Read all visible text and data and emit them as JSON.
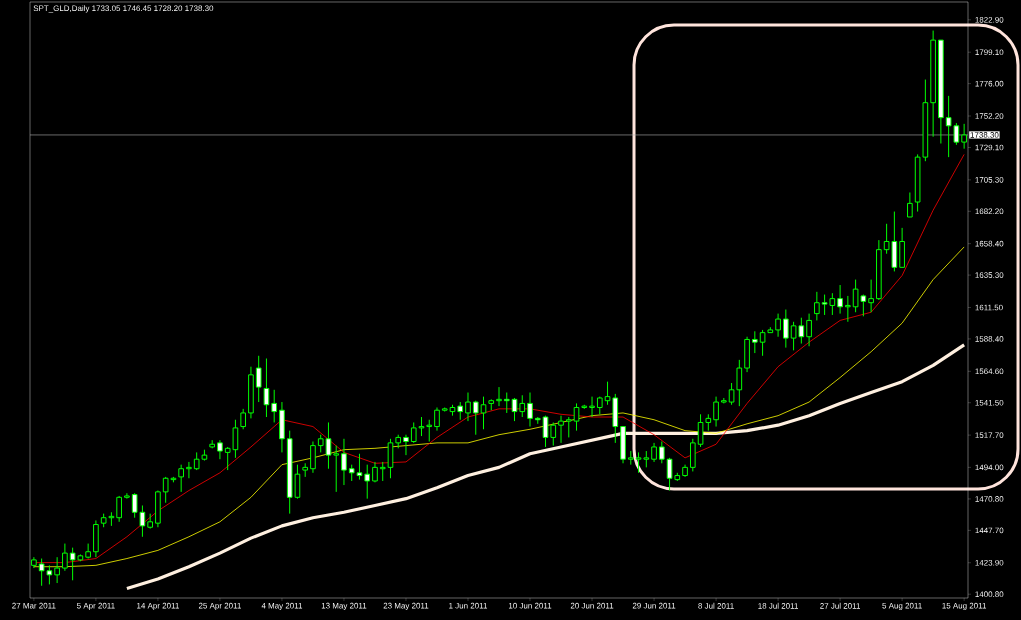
{
  "chart_data": {
    "type": "candlestick",
    "title": "SPT_GLD,Daily 1733.05 1746.45 1728.20 1738.30",
    "color": "#00ff00",
    "categories": [
      "27 Mar 2011",
      null,
      null,
      null,
      null,
      null,
      null,
      null,
      "5 Apr 2011",
      null,
      null,
      null,
      null,
      null,
      null,
      null,
      "14 Apr 2011",
      null,
      null,
      null,
      null,
      null,
      null,
      null,
      "25 Apr 2011",
      null,
      null,
      null,
      null,
      null,
      null,
      null,
      "4 May 2011",
      null,
      null,
      null,
      null,
      null,
      null,
      null,
      "13 May 2011",
      null,
      null,
      null,
      null,
      null,
      null,
      null,
      "23 May 2011",
      null,
      null,
      null,
      null,
      null,
      null,
      null,
      "1 Jun 2011",
      null,
      null,
      null,
      null,
      null,
      null,
      null,
      "10 Jun 2011",
      null,
      null,
      null,
      null,
      null,
      null,
      null,
      "20 Jun 2011",
      null,
      null,
      null,
      null,
      null,
      null,
      null,
      "29 Jun 2011",
      null,
      null,
      null,
      null,
      null,
      null,
      null,
      "8 Jul 2011",
      null,
      null,
      null,
      null,
      null,
      null,
      null,
      "18 Jul 2011",
      null,
      null,
      null,
      null,
      null,
      null,
      null,
      "27 Jul 2011",
      null,
      null,
      null,
      null,
      null,
      null,
      null,
      "5 Aug 2011",
      null,
      null,
      null,
      null,
      null,
      null,
      null,
      "15 Aug 2011"
    ],
    "ohlc": [
      [
        1422,
        1428,
        1420,
        1426
      ],
      [
        1423,
        1427,
        1407,
        1418
      ],
      [
        1418,
        1422,
        1408,
        1415
      ],
      [
        1415,
        1428,
        1409,
        1420
      ],
      [
        1420,
        1438,
        1418,
        1431
      ],
      [
        1431,
        1435,
        1411,
        1426
      ],
      [
        1426,
        1430,
        1425,
        1429
      ],
      [
        1428,
        1438,
        1427,
        1432
      ],
      [
        1432,
        1455,
        1428,
        1452
      ],
      [
        1453,
        1460,
        1450,
        1457
      ],
      [
        1457,
        1461,
        1451,
        1458
      ],
      [
        1457,
        1473,
        1454,
        1472
      ],
      [
        1472,
        1475,
        1471,
        1473
      ],
      [
        1474,
        1475,
        1457,
        1461
      ],
      [
        1461,
        1466,
        1443,
        1451
      ],
      [
        1450,
        1460,
        1449,
        1454
      ],
      [
        1453,
        1477,
        1450,
        1476
      ],
      [
        1476,
        1487,
        1468,
        1486
      ],
      [
        1485,
        1487,
        1483,
        1486
      ],
      [
        1487,
        1496,
        1476,
        1493
      ],
      [
        1493,
        1498,
        1486,
        1494
      ],
      [
        1493,
        1505,
        1492,
        1500
      ],
      [
        1500,
        1507,
        1499,
        1503
      ],
      [
        1509,
        1514,
        1508,
        1511
      ],
      [
        1512,
        1514,
        1500,
        1506
      ],
      [
        1505,
        1509,
        1492,
        1508
      ],
      [
        1507,
        1529,
        1501,
        1523
      ],
      [
        1524,
        1537,
        1522,
        1534
      ],
      [
        1534,
        1568,
        1530,
        1562
      ],
      [
        1567,
        1576,
        1542,
        1553
      ],
      [
        1552,
        1574,
        1531,
        1540
      ],
      [
        1541,
        1551,
        1527,
        1535
      ],
      [
        1536,
        1542,
        1505,
        1515
      ],
      [
        1515,
        1521,
        1460,
        1472
      ],
      [
        1472,
        1496,
        1471,
        1489
      ],
      [
        1492,
        1497,
        1487,
        1494
      ],
      [
        1493,
        1513,
        1490,
        1510
      ],
      [
        1510,
        1518,
        1505,
        1515
      ],
      [
        1515,
        1527,
        1493,
        1503
      ],
      [
        1503,
        1510,
        1476,
        1504
      ],
      [
        1504,
        1515,
        1481,
        1492
      ],
      [
        1493,
        1496,
        1484,
        1490
      ],
      [
        1490,
        1504,
        1485,
        1488
      ],
      [
        1489,
        1496,
        1471,
        1484
      ],
      [
        1484,
        1498,
        1483,
        1494
      ],
      [
        1493,
        1498,
        1484,
        1494
      ],
      [
        1494,
        1515,
        1486,
        1512
      ],
      [
        1512,
        1518,
        1508,
        1516
      ],
      [
        1516,
        1518,
        1503,
        1513
      ],
      [
        1513,
        1527,
        1512,
        1523
      ],
      [
        1523,
        1531,
        1517,
        1524
      ],
      [
        1524,
        1529,
        1513,
        1525
      ],
      [
        1524,
        1538,
        1521,
        1536
      ],
      [
        1536,
        1538,
        1535,
        1537
      ],
      [
        1535,
        1540,
        1532,
        1538
      ],
      [
        1539,
        1542,
        1529,
        1535
      ],
      [
        1534,
        1549,
        1528,
        1542
      ],
      [
        1542,
        1543,
        1518,
        1534
      ],
      [
        1534,
        1546,
        1522,
        1540
      ],
      [
        1541,
        1544,
        1536,
        1543
      ],
      [
        1543,
        1553,
        1539,
        1544
      ],
      [
        1544,
        1549,
        1534,
        1543
      ],
      [
        1544,
        1545,
        1528,
        1535
      ],
      [
        1535,
        1547,
        1531,
        1541
      ],
      [
        1541,
        1549,
        1524,
        1530
      ],
      [
        1530,
        1531,
        1526,
        1529
      ],
      [
        1531,
        1532,
        1509,
        1516
      ],
      [
        1516,
        1527,
        1510,
        1525
      ],
      [
        1525,
        1532,
        1512,
        1528
      ],
      [
        1528,
        1531,
        1516,
        1529
      ],
      [
        1528,
        1541,
        1521,
        1538
      ],
      [
        1538,
        1540,
        1537,
        1539
      ],
      [
        1538,
        1546,
        1531,
        1539
      ],
      [
        1538,
        1546,
        1533,
        1545
      ],
      [
        1543,
        1557,
        1540,
        1546
      ],
      [
        1545,
        1548,
        1512,
        1524
      ],
      [
        1524,
        1524,
        1497,
        1500
      ],
      [
        1500,
        1506,
        1496,
        1501
      ],
      [
        1500,
        1505,
        1490,
        1501
      ],
      [
        1500,
        1506,
        1494,
        1501
      ],
      [
        1500,
        1512,
        1498,
        1509
      ],
      [
        1509,
        1513,
        1497,
        1500
      ],
      [
        1500,
        1501,
        1477,
        1486
      ],
      [
        1485,
        1490,
        1484,
        1488
      ],
      [
        1488,
        1496,
        1487,
        1494
      ],
      [
        1494,
        1515,
        1491,
        1512
      ],
      [
        1511,
        1533,
        1509,
        1527
      ],
      [
        1527,
        1533,
        1521,
        1530
      ],
      [
        1529,
        1546,
        1524,
        1542
      ],
      [
        1542,
        1545,
        1541,
        1543
      ],
      [
        1542,
        1556,
        1540,
        1551
      ],
      [
        1551,
        1573,
        1539,
        1567
      ],
      [
        1567,
        1590,
        1564,
        1588
      ],
      [
        1588,
        1594,
        1578,
        1586
      ],
      [
        1586,
        1595,
        1576,
        1593
      ],
      [
        1593,
        1597,
        1593,
        1595
      ],
      [
        1595,
        1607,
        1590,
        1603
      ],
      [
        1603,
        1610,
        1582,
        1589
      ],
      [
        1589,
        1601,
        1580,
        1598
      ],
      [
        1598,
        1604,
        1585,
        1590
      ],
      [
        1590,
        1607,
        1583,
        1602
      ],
      [
        1607,
        1623,
        1602,
        1615
      ],
      [
        1615,
        1621,
        1606,
        1614
      ],
      [
        1613,
        1622,
        1606,
        1618
      ],
      [
        1618,
        1628,
        1607,
        1612
      ],
      [
        1612,
        1620,
        1601,
        1613
      ],
      [
        1612,
        1632,
        1608,
        1625
      ],
      [
        1620,
        1621,
        1605,
        1616
      ],
      [
        1615,
        1632,
        1608,
        1618
      ],
      [
        1618,
        1661,
        1617,
        1654
      ],
      [
        1654,
        1673,
        1651,
        1660
      ],
      [
        1660,
        1682,
        1638,
        1641
      ],
      [
        1641,
        1670,
        1641,
        1660
      ],
      [
        1678,
        1696,
        1678,
        1688
      ],
      [
        1689,
        1724,
        1682,
        1722
      ],
      [
        1722,
        1779,
        1719,
        1762
      ],
      [
        1762,
        1815,
        1737,
        1808
      ],
      [
        1808,
        1808,
        1732,
        1751
      ],
      [
        1751,
        1767,
        1722,
        1745
      ],
      [
        1745,
        1747,
        1731,
        1733
      ],
      [
        1733.05,
        1746.45,
        1728.2,
        1738.3
      ]
    ],
    "series": [
      {
        "type": "line",
        "color": "#ff0000",
        "values": [
          1424,
          null,
          null,
          null,
          1424,
          null,
          null,
          null,
          1427,
          null,
          null,
          null,
          1443,
          null,
          null,
          null,
          1462,
          null,
          null,
          null,
          1477,
          null,
          null,
          null,
          1490,
          null,
          null,
          null,
          1509,
          null,
          null,
          null,
          1529,
          null,
          null,
          null,
          1524,
          null,
          null,
          null,
          1505,
          null,
          null,
          null,
          1497,
          null,
          null,
          null,
          1498,
          null,
          null,
          null,
          1516,
          null,
          null,
          null,
          1531,
          null,
          null,
          null,
          1537,
          null,
          null,
          null,
          1537,
          null,
          null,
          null,
          1533,
          null,
          null,
          null,
          1531,
          null,
          null,
          null,
          1531,
          null,
          null,
          null,
          1518,
          null,
          null,
          null,
          1501,
          null,
          null,
          null,
          1511,
          null,
          null,
          null,
          1541,
          null,
          null,
          null,
          1568,
          null,
          null,
          null,
          1586,
          null,
          null,
          null,
          1602,
          null,
          null,
          null,
          1608,
          null,
          null,
          null,
          1635,
          null,
          null,
          null,
          1683,
          null,
          null,
          null,
          1724
        ]
      },
      {
        "type": "line",
        "color": "#ffff00",
        "values": [
          1421,
          null,
          null,
          null,
          1421,
          null,
          null,
          null,
          1422,
          null,
          null,
          null,
          1427,
          null,
          null,
          null,
          1433,
          null,
          null,
          null,
          1443,
          null,
          null,
          null,
          1454,
          null,
          null,
          null,
          1472,
          null,
          null,
          null,
          1496,
          null,
          null,
          null,
          1501,
          null,
          null,
          null,
          1507,
          null,
          null,
          null,
          1508,
          null,
          null,
          null,
          1510,
          null,
          null,
          null,
          1512,
          null,
          null,
          null,
          1512,
          null,
          null,
          null,
          1518,
          null,
          null,
          null,
          1522,
          null,
          null,
          null,
          1527,
          null,
          null,
          null,
          1532,
          null,
          null,
          null,
          1534,
          null,
          null,
          null,
          1529,
          null,
          null,
          null,
          1521,
          null,
          null,
          null,
          1519,
          null,
          null,
          null,
          1526,
          null,
          null,
          null,
          1532,
          null,
          null,
          null,
          1542,
          null,
          null,
          null,
          1560,
          null,
          null,
          null,
          1579,
          null,
          null,
          null,
          1600,
          null,
          null,
          null,
          1632,
          null,
          null,
          null,
          1656
        ]
      },
      {
        "type": "line",
        "color": "#fff0e0",
        "values": [
          null,
          null,
          null,
          null,
          null,
          null,
          null,
          null,
          null,
          null,
          null,
          null,
          1405,
          null,
          null,
          null,
          1412,
          null,
          null,
          null,
          1421,
          null,
          null,
          null,
          1431,
          null,
          null,
          null,
          1442,
          null,
          null,
          null,
          1451,
          null,
          null,
          null,
          1457,
          null,
          null,
          null,
          1461,
          null,
          null,
          null,
          1466,
          null,
          null,
          null,
          1471,
          null,
          null,
          null,
          1479,
          null,
          null,
          null,
          1488,
          null,
          null,
          null,
          1494,
          null,
          null,
          null,
          1504,
          null,
          null,
          null,
          1509,
          null,
          null,
          null,
          1514,
          null,
          null,
          null,
          1519,
          null,
          null,
          null,
          1519,
          null,
          null,
          null,
          1519,
          null,
          null,
          null,
          1519,
          null,
          null,
          null,
          1521,
          null,
          null,
          null,
          1525,
          null,
          null,
          null,
          1532,
          null,
          null,
          null,
          1541,
          null,
          null,
          null,
          1549,
          null,
          null,
          null,
          1557,
          null,
          null,
          null,
          1569,
          null,
          null,
          null,
          1584
        ]
      }
    ],
    "ylim": [
      1398,
      1836
    ],
    "yticks": [
      {
        "value": 1400.8,
        "label": "1400.80"
      },
      {
        "value": 1423.9,
        "label": "1423.90"
      },
      {
        "value": 1447.7,
        "label": "1447.70"
      },
      {
        "value": 1470.8,
        "label": "1470.80"
      },
      {
        "value": 1494.0,
        "label": "1494.00"
      },
      {
        "value": 1517.7,
        "label": "1517.70"
      },
      {
        "value": 1541.5,
        "label": "1541.50"
      },
      {
        "value": 1564.6,
        "label": "1564.60"
      },
      {
        "value": 1588.4,
        "label": "1588.40"
      },
      {
        "value": 1611.5,
        "label": "1611.50"
      },
      {
        "value": 1635.3,
        "label": "1635.30"
      },
      {
        "value": 1658.4,
        "label": "1658.40"
      },
      {
        "value": 1682.2,
        "label": "1682.20"
      },
      {
        "value": 1705.3,
        "label": "1705.30"
      },
      {
        "value": 1729.1,
        "label": "1729.10"
      },
      {
        "value": 1752.2,
        "label": "1752.20"
      },
      {
        "value": 1776.0,
        "label": "1776.00"
      },
      {
        "value": 1799.1,
        "label": "1799.10"
      },
      {
        "value": 1822.9,
        "label": "1822.90"
      }
    ],
    "ref_lines": [
      {
        "axis": "y",
        "value": 1738.3,
        "label": "1738.30",
        "color": "#b0b0b0"
      }
    ]
  }
}
